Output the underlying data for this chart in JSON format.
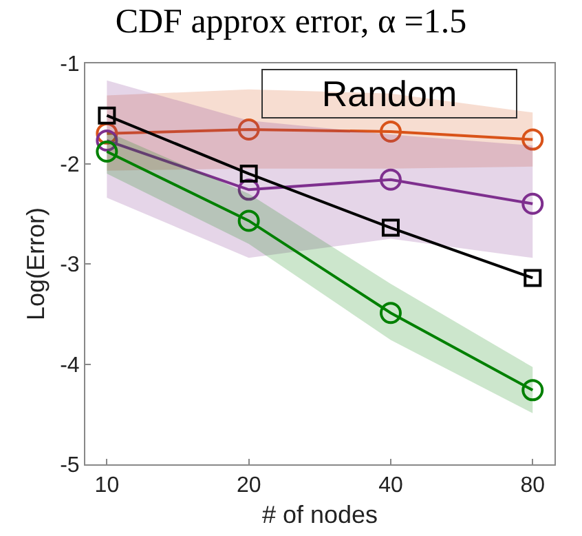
{
  "chart_data": {
    "type": "line",
    "title": "CDF approx error, α =1.5",
    "xlabel": "# of nodes",
    "ylabel": "Log(Error)",
    "x": [
      10,
      20,
      40,
      80
    ],
    "log": "x",
    "xlim": [
      9,
      89
    ],
    "xticks": [
      10,
      20,
      40,
      80
    ],
    "ylim": [
      -5,
      -1
    ],
    "yticks": [
      -5,
      -4,
      -3,
      -2,
      -1
    ],
    "grid": false,
    "series": [
      {
        "color": "#d95319",
        "marker": "circle",
        "values": [
          -1.7,
          -1.66,
          -1.68,
          -1.76
        ],
        "lower": [
          -2.07,
          -2.05,
          -2.05,
          -2.03
        ],
        "upper": [
          -1.32,
          -1.26,
          -1.3,
          -1.49
        ]
      },
      {
        "color": "#7e2f8e",
        "marker": "circle",
        "values": [
          -1.77,
          -2.26,
          -2.16,
          -2.4
        ],
        "lower": [
          -2.34,
          -2.94,
          -2.75,
          -2.94
        ],
        "upper": [
          -1.17,
          -1.57,
          -1.71,
          -1.82
        ]
      },
      {
        "color": "#008000",
        "marker": "circle",
        "values": [
          -1.88,
          -2.57,
          -3.49,
          -4.26
        ],
        "lower": [
          -2.1,
          -2.8,
          -3.76,
          -4.49
        ],
        "upper": [
          -1.68,
          -2.3,
          -3.2,
          -4.03
        ]
      },
      {
        "color": "#000000",
        "marker": "square",
        "values": [
          -1.52,
          -2.1,
          -2.64,
          -3.14
        ]
      }
    ],
    "annotations": [
      "Random"
    ]
  }
}
